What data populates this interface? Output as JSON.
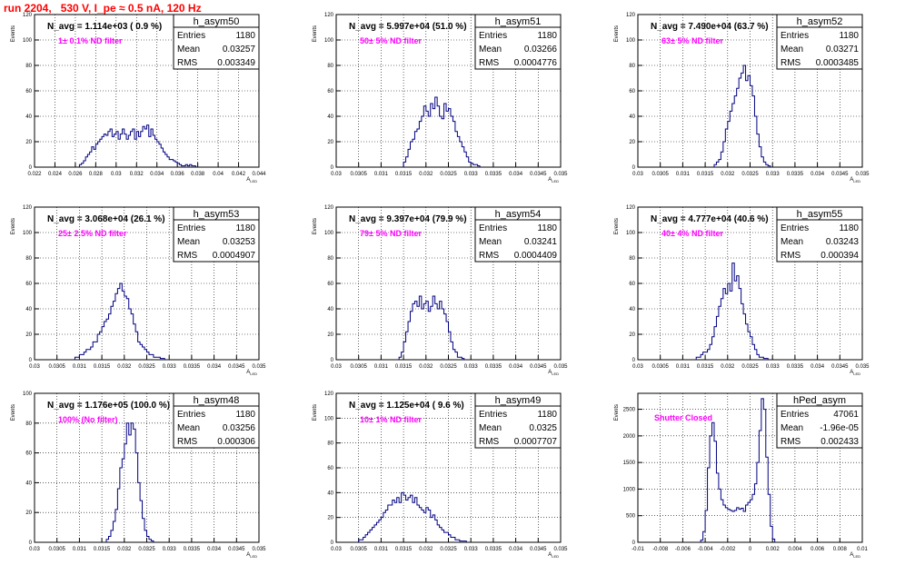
{
  "page": {
    "title": "run 2204,   530 V, I_pe ≈ 0.5 nA, 120 Hz"
  },
  "colors": {
    "histogram_line": "#000080",
    "grid": "#000000",
    "title_red": "#ff0000",
    "annotation_magenta": "#ff00ff"
  },
  "stats_labels": {
    "entries": "Entries",
    "mean": "Mean",
    "rms": "RMS"
  },
  "y_axis_label": "Events",
  "chart_data": [
    {
      "type": "bar",
      "name": "h_asym50",
      "navg_label": "N_avg = 1.114e+03 ( 0.9 %)",
      "filter_label": "1± 0.1% ND filter",
      "entries": "1180",
      "mean": "0.03257",
      "rms": "0.003349",
      "xlim": [
        0.022,
        0.044
      ],
      "ylim": [
        0,
        120
      ],
      "xtick_values": [
        0.022,
        0.024,
        0.026,
        0.028,
        0.03,
        0.032,
        0.034,
        0.036,
        0.038,
        0.04,
        0.042,
        0.044
      ],
      "xtick_labels": [
        "0.022",
        "0.024",
        "0.026",
        "0.028",
        "0.03",
        "0.032",
        "0.034",
        "0.036",
        "0.038",
        "0.04",
        "0.042",
        "0.044"
      ],
      "ytick_values": [
        0,
        20,
        40,
        60,
        80,
        100,
        120
      ],
      "ytick_labels": [
        "0",
        "20",
        "40",
        "60",
        "80",
        "100",
        "120"
      ],
      "xlabel": "A_{LED}",
      "bin_start": 0.0264,
      "bin_width": 0.0002,
      "values": [
        2,
        3,
        5,
        8,
        10,
        12,
        16,
        14,
        18,
        20,
        22,
        24,
        26,
        25,
        28,
        30,
        24,
        26,
        28,
        22,
        26,
        30,
        26,
        22,
        25,
        28,
        30,
        22,
        28,
        24,
        28,
        32,
        30,
        33,
        24,
        30,
        25,
        22,
        20,
        18,
        15,
        12,
        10,
        8,
        6,
        6,
        5,
        4,
        3,
        2,
        1,
        1,
        2,
        1,
        2,
        1,
        1
      ]
    },
    {
      "type": "bar",
      "name": "h_asym51",
      "navg_label": "N_avg = 5.997e+04 (51.0 %)",
      "filter_label": "50± 5% ND filter",
      "entries": "1180",
      "mean": "0.03266",
      "rms": "0.0004776",
      "xlim": [
        0.03,
        0.035
      ],
      "ylim": [
        0,
        120
      ],
      "xtick_values": [
        0.03,
        0.0305,
        0.031,
        0.0315,
        0.032,
        0.0325,
        0.033,
        0.0335,
        0.034,
        0.0345,
        0.035
      ],
      "xtick_labels": [
        "0.03",
        "0.0305",
        "0.031",
        "0.0315",
        "0.032",
        "0.0325",
        "0.033",
        "0.0335",
        "0.034",
        "0.0345",
        "0.035"
      ],
      "ytick_values": [
        0,
        20,
        40,
        60,
        80,
        100,
        120
      ],
      "ytick_labels": [
        "0",
        "20",
        "40",
        "60",
        "80",
        "100",
        "120"
      ],
      "xlabel": "A_{LED}",
      "bin_start": 0.0315,
      "bin_width": 5e-05,
      "values": [
        4,
        8,
        14,
        20,
        22,
        28,
        30,
        36,
        40,
        48,
        44,
        40,
        50,
        46,
        55,
        48,
        40,
        38,
        50,
        44,
        46,
        40,
        36,
        28,
        24,
        20,
        16,
        12,
        8,
        4,
        3,
        2,
        2,
        1
      ]
    },
    {
      "type": "bar",
      "name": "h_asym52",
      "navg_label": "N_avg = 7.490e+04 (63.7 %)",
      "filter_label": "63± 5% ND filter",
      "entries": "1180",
      "mean": "0.03271",
      "rms": "0.0003485",
      "xlim": [
        0.03,
        0.035
      ],
      "ylim": [
        0,
        120
      ],
      "xtick_values": [
        0.03,
        0.0305,
        0.031,
        0.0315,
        0.032,
        0.0325,
        0.033,
        0.0335,
        0.034,
        0.0345,
        0.035
      ],
      "xtick_labels": [
        "0.03",
        "0.0305",
        "0.031",
        "0.0315",
        "0.032",
        "0.0325",
        "0.033",
        "0.0335",
        "0.034",
        "0.0345",
        "0.035"
      ],
      "ytick_values": [
        0,
        20,
        40,
        60,
        80,
        100,
        120
      ],
      "ytick_labels": [
        "0",
        "20",
        "40",
        "60",
        "80",
        "100",
        "120"
      ],
      "xlabel": "A_{LED}",
      "bin_start": 0.0317,
      "bin_width": 5e-05,
      "values": [
        2,
        4,
        6,
        12,
        20,
        30,
        36,
        44,
        50,
        56,
        62,
        70,
        74,
        80,
        68,
        72,
        64,
        56,
        40,
        26,
        16,
        8,
        4,
        2,
        1
      ]
    },
    {
      "type": "bar",
      "name": "h_asym53",
      "navg_label": "N_avg = 3.068e+04 (26.1 %)",
      "filter_label": "25± 2.5% ND filter",
      "entries": "1180",
      "mean": "0.03253",
      "rms": "0.0004907",
      "xlim": [
        0.03,
        0.035
      ],
      "ylim": [
        0,
        120
      ],
      "xtick_values": [
        0.03,
        0.0305,
        0.031,
        0.0315,
        0.032,
        0.0325,
        0.033,
        0.0335,
        0.034,
        0.0345,
        0.035
      ],
      "xtick_labels": [
        "0.03",
        "0.0305",
        "0.031",
        "0.0315",
        "0.032",
        "0.0325",
        "0.033",
        "0.0335",
        "0.034",
        "0.0345",
        "0.035"
      ],
      "ytick_values": [
        0,
        20,
        40,
        60,
        80,
        100,
        120
      ],
      "ytick_labels": [
        "0",
        "20",
        "40",
        "60",
        "80",
        "100",
        "120"
      ],
      "xlabel": "A_{LED}",
      "bin_start": 0.0309,
      "bin_width": 5e-05,
      "values": [
        2,
        2,
        4,
        4,
        6,
        8,
        8,
        10,
        14,
        14,
        20,
        22,
        26,
        30,
        32,
        36,
        42,
        46,
        52,
        56,
        60,
        54,
        50,
        48,
        40,
        36,
        28,
        22,
        14,
        12,
        10,
        8,
        6,
        4,
        4,
        2,
        2,
        2,
        1,
        1
      ]
    },
    {
      "type": "bar",
      "name": "h_asym54",
      "navg_label": "N_avg = 9.397e+04 (79.9 %)",
      "filter_label": "79± 5% ND filter",
      "entries": "1180",
      "mean": "0.03241",
      "rms": "0.0004409",
      "xlim": [
        0.03,
        0.035
      ],
      "ylim": [
        0,
        120
      ],
      "xtick_values": [
        0.03,
        0.0305,
        0.031,
        0.0315,
        0.032,
        0.0325,
        0.033,
        0.0335,
        0.034,
        0.0345,
        0.035
      ],
      "xtick_labels": [
        "0.03",
        "0.0305",
        "0.031",
        "0.0315",
        "0.032",
        "0.0325",
        "0.033",
        "0.0335",
        "0.034",
        "0.0345",
        "0.035"
      ],
      "ytick_values": [
        0,
        20,
        40,
        60,
        80,
        100,
        120
      ],
      "ytick_labels": [
        "0",
        "20",
        "40",
        "60",
        "80",
        "100",
        "120"
      ],
      "xlabel": "A_{LED}",
      "bin_start": 0.0314,
      "bin_width": 5e-05,
      "values": [
        2,
        6,
        14,
        22,
        30,
        38,
        44,
        46,
        42,
        50,
        40,
        44,
        46,
        38,
        42,
        50,
        44,
        40,
        46,
        40,
        36,
        30,
        22,
        14,
        8,
        6,
        2,
        2,
        1
      ]
    },
    {
      "type": "bar",
      "name": "h_asym55",
      "navg_label": "N_avg = 4.777e+04 (40.6 %)",
      "filter_label": "40± 4% ND filter",
      "entries": "1180",
      "mean": "0.03243",
      "rms": "0.000394",
      "xlim": [
        0.03,
        0.035
      ],
      "ylim": [
        0,
        120
      ],
      "xtick_values": [
        0.03,
        0.0305,
        0.031,
        0.0315,
        0.032,
        0.0325,
        0.033,
        0.0335,
        0.034,
        0.0345,
        0.035
      ],
      "xtick_labels": [
        "0.03",
        "0.0305",
        "0.031",
        "0.0315",
        "0.032",
        "0.0325",
        "0.033",
        "0.0335",
        "0.034",
        "0.0345",
        "0.035"
      ],
      "ytick_values": [
        0,
        20,
        40,
        60,
        80,
        100,
        120
      ],
      "ytick_labels": [
        "0",
        "20",
        "40",
        "60",
        "80",
        "100",
        "120"
      ],
      "xlabel": "A_{LED}",
      "bin_start": 0.0313,
      "bin_width": 5e-05,
      "values": [
        2,
        2,
        4,
        6,
        6,
        8,
        12,
        18,
        26,
        34,
        42,
        48,
        56,
        52,
        60,
        54,
        76,
        62,
        66,
        56,
        44,
        36,
        28,
        22,
        18,
        12,
        8,
        4,
        2,
        2,
        1,
        1
      ]
    },
    {
      "type": "bar",
      "name": "h_asym48",
      "navg_label": "N_avg = 1.176e+05 (100.0 %)",
      "filter_label": "100% (No filter)",
      "entries": "1180",
      "mean": "0.03256",
      "rms": "0.000306",
      "xlim": [
        0.03,
        0.035
      ],
      "ylim": [
        0,
        100
      ],
      "xtick_values": [
        0.03,
        0.0305,
        0.031,
        0.0315,
        0.032,
        0.0325,
        0.033,
        0.0335,
        0.034,
        0.0345,
        0.035
      ],
      "xtick_labels": [
        "0.03",
        "0.0305",
        "0.031",
        "0.0315",
        "0.032",
        "0.0325",
        "0.033",
        "0.0335",
        "0.034",
        "0.0345",
        "0.035"
      ],
      "ytick_values": [
        0,
        20,
        40,
        60,
        80,
        100
      ],
      "ytick_labels": [
        "0",
        "20",
        "40",
        "60",
        "80",
        "100"
      ],
      "xlabel": "A_{LED}",
      "bin_start": 0.0316,
      "bin_width": 5e-05,
      "values": [
        2,
        4,
        8,
        14,
        22,
        36,
        50,
        56,
        66,
        80,
        72,
        80,
        76,
        60,
        40,
        28,
        16,
        8,
        4,
        2,
        1
      ]
    },
    {
      "type": "bar",
      "name": "h_asym49",
      "navg_label": "N_avg = 1.125e+04 ( 9.6 %)",
      "filter_label": "10± 1% ND filter",
      "entries": "1180",
      "mean": "0.0325",
      "rms": "0.0007707",
      "xlim": [
        0.03,
        0.035
      ],
      "ylim": [
        0,
        120
      ],
      "xtick_values": [
        0.03,
        0.0305,
        0.031,
        0.0315,
        0.032,
        0.0325,
        0.033,
        0.0335,
        0.034,
        0.0345,
        0.035
      ],
      "xtick_labels": [
        "0.03",
        "0.0305",
        "0.031",
        "0.0315",
        "0.032",
        "0.0325",
        "0.033",
        "0.0335",
        "0.034",
        "0.0345",
        "0.035"
      ],
      "ytick_values": [
        0,
        20,
        40,
        60,
        80,
        100,
        120
      ],
      "ytick_labels": [
        "0",
        "20",
        "40",
        "60",
        "80",
        "100",
        "120"
      ],
      "xlabel": "A_{LED}",
      "bin_start": 0.0305,
      "bin_width": 5e-05,
      "values": [
        2,
        2,
        4,
        6,
        8,
        10,
        12,
        14,
        16,
        18,
        20,
        24,
        26,
        30,
        30,
        34,
        32,
        36,
        32,
        40,
        38,
        34,
        36,
        38,
        32,
        36,
        30,
        28,
        26,
        24,
        28,
        26,
        20,
        22,
        18,
        14,
        12,
        10,
        8,
        8,
        6,
        4,
        4,
        2,
        2,
        1,
        1,
        1
      ]
    },
    {
      "type": "bar",
      "name": "hPed_asym",
      "navg_label": "",
      "filter_label": "Shutter Closed",
      "entries": "47061",
      "mean": "-1.96e-05",
      "rms": "0.002433",
      "xlim": [
        -0.01,
        0.01
      ],
      "ylim": [
        0,
        2800
      ],
      "xtick_values": [
        -0.01,
        -0.008,
        -0.006,
        -0.004,
        -0.002,
        0,
        0.002,
        0.004,
        0.006,
        0.008,
        0.01
      ],
      "xtick_labels": [
        "-0.01",
        "-0.008",
        "-0.006",
        "-0.004",
        "-0.002",
        "0",
        "0.002",
        "0.004",
        "0.006",
        "0.008",
        "0.01"
      ],
      "ytick_values": [
        0,
        500,
        1000,
        1500,
        2000,
        2500
      ],
      "ytick_labels": [
        "0",
        "500",
        "1000",
        "1500",
        "2000",
        "2500"
      ],
      "xlabel": "A_{LED}",
      "bin_start": -0.0044,
      "bin_width": 0.0002,
      "values": [
        40,
        200,
        600,
        1400,
        2000,
        2250,
        1900,
        1300,
        1000,
        800,
        700,
        650,
        620,
        600,
        580,
        600,
        650,
        620,
        640,
        580,
        700,
        750,
        800,
        900,
        1100,
        1500,
        2100,
        2700,
        2500,
        1600,
        900,
        300,
        60
      ]
    }
  ]
}
